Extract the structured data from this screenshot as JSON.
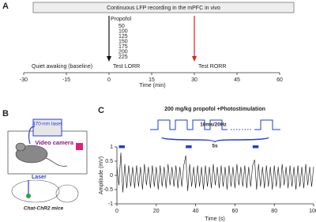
{
  "panels": {
    "a": "A",
    "b": "B",
    "c": "C"
  },
  "protocol": {
    "title": "Continuous LFP recording in the mPFC in vivo",
    "drug": "Propofol",
    "doses": [
      50,
      100,
      125,
      150,
      175,
      200,
      225
    ],
    "baseline": "Quiet awaking (baseline)",
    "events": [
      {
        "label": "Test LORR",
        "time": 0,
        "color": "#111111"
      },
      {
        "label": "Test RORR",
        "time": 30,
        "color": "#e0201c"
      }
    ],
    "xlabel": "Time (min)",
    "xlim": [
      -30,
      60
    ],
    "xticks": [
      -30,
      -15,
      0,
      15,
      30,
      45,
      60
    ]
  },
  "setup": {
    "laser": "470-nm laser",
    "camera": "Video camera",
    "fiber": "Laser",
    "mice": "Chat-ChR2 mice"
  },
  "chart_data": {
    "type": "line",
    "title": "200 mg/kg propofol +Photostimulation",
    "pulse_label": "10ms/20Hz",
    "train_label": "5s",
    "x": [
      0,
      1,
      2,
      3,
      4,
      5,
      6,
      7,
      8,
      9,
      10,
      11,
      12,
      13,
      14,
      15,
      16,
      17,
      18,
      19,
      20,
      21,
      22,
      23,
      24,
      25,
      26,
      27,
      28,
      29,
      30,
      31,
      32,
      33,
      34,
      35,
      36,
      37,
      38,
      39,
      40,
      41,
      42,
      43,
      44,
      45,
      46,
      47,
      48,
      49,
      50,
      51,
      52,
      53,
      54,
      55,
      56,
      57,
      58,
      59,
      60,
      61,
      62,
      63,
      64,
      65,
      66,
      67,
      68,
      69,
      70,
      71,
      72,
      73,
      74,
      75,
      76,
      77,
      78,
      79,
      80,
      81,
      82,
      83,
      84,
      85,
      86,
      87,
      88,
      89,
      90,
      91,
      92,
      93,
      94,
      95,
      96,
      97,
      98,
      99,
      100
    ],
    "values": [
      0.3,
      -0.35,
      0.8,
      -0.6,
      0.4,
      -0.45,
      0.35,
      -0.4,
      0.3,
      -0.45,
      0.35,
      -0.4,
      0.3,
      -0.5,
      0.4,
      -0.35,
      0.3,
      -0.45,
      0.35,
      -0.4,
      0.3,
      -0.5,
      0.35,
      -0.4,
      0.3,
      -0.45,
      0.4,
      -0.35,
      0.3,
      -0.4,
      0.35,
      -0.45,
      0.3,
      -0.4,
      0.35,
      0.7,
      -0.55,
      0.4,
      -0.4,
      0.3,
      -0.45,
      0.35,
      -0.4,
      0.3,
      -0.5,
      0.35,
      -0.4,
      0.3,
      -0.45,
      0.4,
      -0.35,
      0.3,
      -0.45,
      0.35,
      -0.4,
      0.3,
      -0.5,
      0.35,
      -0.4,
      0.3,
      -0.45,
      0.4,
      -0.35,
      0.3,
      -0.4,
      0.35,
      -0.45,
      0.3,
      -0.4,
      0.35,
      0.55,
      -0.5,
      0.4,
      -0.4,
      0.3,
      -0.45,
      0.35,
      -0.4,
      0.3,
      -0.5,
      0.35,
      -0.4,
      0.3,
      -0.45,
      0.4,
      -0.35,
      0.3,
      -0.45,
      0.35,
      -0.4,
      0.3,
      -0.5,
      0.35,
      -0.4,
      0.3,
      -0.45,
      0.4,
      -0.35,
      0.3,
      -0.4,
      0.3
    ],
    "color": "#111111",
    "stim_color": "#1f3fd0",
    "stimulation": [
      [
        1,
        4
      ],
      [
        35,
        38
      ],
      [
        69,
        72
      ]
    ],
    "xlabel": "Time (s)",
    "ylabel": "Amplitude (mV)",
    "xlim": [
      0,
      100
    ],
    "xticks": [
      0,
      20,
      40,
      60,
      80,
      100
    ],
    "ylim": [
      -1,
      1
    ],
    "yticks": [
      -1,
      -0.5,
      0,
      0.5,
      1
    ]
  }
}
